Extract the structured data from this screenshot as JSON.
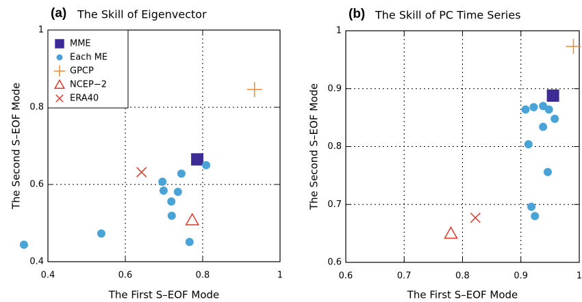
{
  "chart_data": [
    {
      "type": "scatter",
      "label": "(a)",
      "title": "The Skill of Eigenvector",
      "xlabel": "The First S–EOF Mode",
      "ylabel": "The Second S–EOF Mode",
      "xlim": [
        0.4,
        1
      ],
      "ylim": [
        0.4,
        1
      ],
      "xticks": [
        0.4,
        0.6,
        0.8,
        1
      ],
      "yticks": [
        0.4,
        0.6,
        0.8,
        1
      ],
      "grid": true,
      "legend": "upper left",
      "series": [
        {
          "name": "MME",
          "color": "#3d2c95",
          "marker": "square",
          "x": [
            0.786
          ],
          "y": [
            0.665
          ]
        },
        {
          "name": "Each ME",
          "color": "#4aa3d6",
          "marker": "circle",
          "x": [
            0.338,
            0.538,
            0.809,
            0.745,
            0.696,
            0.699,
            0.736,
            0.719,
            0.72,
            0.766
          ],
          "y": [
            0.444,
            0.473,
            0.65,
            0.628,
            0.607,
            0.584,
            0.581,
            0.556,
            0.519,
            0.451
          ]
        },
        {
          "name": "GPCP",
          "color": "#f08a30",
          "marker": "plus",
          "x": [
            0.934
          ],
          "y": [
            0.846
          ]
        },
        {
          "name": "NCEP−2",
          "color": "#d8372a",
          "marker": "triangle",
          "x": [
            0.773
          ],
          "y": [
            0.508
          ]
        },
        {
          "name": "ERA40",
          "color": "#d8372a",
          "marker": "x",
          "x": [
            0.642
          ],
          "y": [
            0.632
          ]
        }
      ]
    },
    {
      "type": "scatter",
      "label": "(b)",
      "title": "The Skill of PC Time Series",
      "xlabel": "The First S–EOF Mode",
      "ylabel": "The Second S–EOF Mode",
      "xlim": [
        0.6,
        1
      ],
      "ylim": [
        0.6,
        1
      ],
      "xticks": [
        0.6,
        0.7,
        0.8,
        0.9,
        1
      ],
      "yticks": [
        0.6,
        0.7,
        0.8,
        0.9,
        1
      ],
      "grid": true,
      "series": [
        {
          "color": "#3d2c95",
          "marker": "square",
          "x": [
            0.955
          ],
          "y": [
            0.888
          ]
        },
        {
          "color": "#4aa3d6",
          "marker": "circle",
          "x": [
            0.908,
            0.922,
            0.938,
            0.948,
            0.958,
            0.938,
            0.913,
            0.946,
            0.918,
            0.924
          ],
          "y": [
            0.864,
            0.868,
            0.87,
            0.864,
            0.848,
            0.834,
            0.804,
            0.756,
            0.696,
            0.68
          ]
        },
        {
          "color": "#f08a30",
          "marker": "plus",
          "x": [
            0.99
          ],
          "y": [
            0.973
          ]
        },
        {
          "color": "#d8372a",
          "marker": "triangle",
          "x": [
            0.78
          ],
          "y": [
            0.65
          ]
        },
        {
          "color": "#d8372a",
          "marker": "x",
          "x": [
            0.822
          ],
          "y": [
            0.677
          ]
        }
      ]
    }
  ]
}
